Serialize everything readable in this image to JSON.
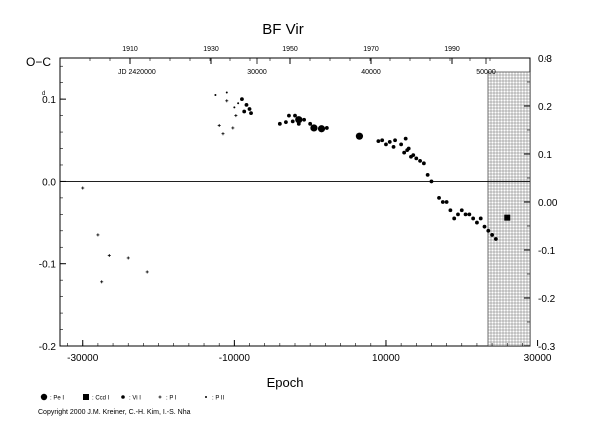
{
  "chart_data": {
    "type": "scatter",
    "title": "BF  Vir",
    "ylabel_left": "O−C",
    "ylabel_right": "d",
    "ylabel_left_unit": "d",
    "xlabel": "Epoch",
    "jd_label": "JD 2420000",
    "copyright": "Copyright 2000 J.M. Kreiner, C.-H. Kim, I.-S. Nha",
    "xlim": [
      -33000,
      29000
    ],
    "ylim": [
      -0.2,
      0.15
    ],
    "ylim_right": [
      -0.3,
      0.3
    ],
    "x_ticks": [
      "-30000",
      "-10000",
      "10000",
      "30000"
    ],
    "y_ticks_left": [
      "0.1",
      "0.0",
      "-0.1",
      "-0.2"
    ],
    "y_ticks_right": [
      "0.3",
      "0.2",
      "0.1",
      "0.00",
      "-0.1",
      "-0.2",
      "-0.3"
    ],
    "top_year_ticks": [
      "1910",
      "1930",
      "1950",
      "1970",
      "1990"
    ],
    "top_jd_ticks": [
      "30000",
      "40000",
      "50000"
    ],
    "hatched_region_x": [
      16500,
      29000
    ],
    "legend": [
      {
        "symbol": "big-dot",
        "label": ": Pe I"
      },
      {
        "symbol": "square",
        "label": ": Ccd I"
      },
      {
        "symbol": "small-dot",
        "label": ": Vi I"
      },
      {
        "symbol": "plus",
        "label": ": P I"
      },
      {
        "symbol": "tiny-dot",
        "label": ": P II"
      }
    ],
    "series": [
      {
        "symbol": "plus",
        "points": [
          [
            -30000,
            -0.008
          ],
          [
            -28000,
            -0.065
          ],
          [
            -27500,
            -0.122
          ],
          [
            -26500,
            -0.09
          ],
          [
            -24000,
            -0.093
          ],
          [
            -21500,
            -0.11
          ],
          [
            -12000,
            0.068
          ],
          [
            -11500,
            0.058
          ],
          [
            -11000,
            0.098
          ],
          [
            -10200,
            0.065
          ],
          [
            -9800,
            0.08
          ]
        ]
      },
      {
        "symbol": "tiny-dot",
        "points": [
          [
            -12500,
            0.105
          ],
          [
            -11000,
            0.108
          ],
          [
            -10000,
            0.09
          ],
          [
            -9500,
            0.095
          ]
        ]
      },
      {
        "symbol": "small-dot",
        "points": [
          [
            -9000,
            0.1
          ],
          [
            -8700,
            0.085
          ],
          [
            -8400,
            0.093
          ],
          [
            -8000,
            0.088
          ],
          [
            -7800,
            0.083
          ],
          [
            -4000,
            0.07
          ],
          [
            -3200,
            0.072
          ],
          [
            -2800,
            0.08
          ],
          [
            -2300,
            0.073
          ],
          [
            -2000,
            0.08
          ],
          [
            -1500,
            0.07
          ],
          [
            -800,
            0.075
          ],
          [
            0,
            0.07
          ],
          [
            500,
            0.065
          ],
          [
            1500,
            0.063
          ],
          [
            2200,
            0.065
          ],
          [
            9000,
            0.049
          ],
          [
            9500,
            0.05
          ],
          [
            10000,
            0.045
          ],
          [
            10500,
            0.048
          ],
          [
            11000,
            0.042
          ],
          [
            11200,
            0.05
          ],
          [
            12000,
            0.045
          ],
          [
            12400,
            0.035
          ],
          [
            12600,
            0.052
          ],
          [
            12800,
            0.038
          ],
          [
            13000,
            0.04
          ],
          [
            13300,
            0.03
          ],
          [
            13600,
            0.032
          ],
          [
            14000,
            0.028
          ],
          [
            14500,
            0.025
          ],
          [
            15000,
            0.022
          ],
          [
            15500,
            0.008
          ],
          [
            16000,
            0.0
          ],
          [
            17000,
            -0.02
          ],
          [
            17500,
            -0.025
          ],
          [
            18000,
            -0.025
          ],
          [
            18500,
            -0.035
          ],
          [
            19000,
            -0.045
          ],
          [
            19500,
            -0.04
          ],
          [
            20000,
            -0.035
          ],
          [
            20500,
            -0.04
          ],
          [
            21000,
            -0.04
          ],
          [
            21500,
            -0.045
          ],
          [
            22000,
            -0.05
          ],
          [
            22500,
            -0.045
          ],
          [
            23000,
            -0.055
          ],
          [
            23500,
            -0.06
          ],
          [
            24000,
            -0.065
          ],
          [
            24500,
            -0.07
          ]
        ]
      },
      {
        "symbol": "big-dot",
        "points": [
          [
            -1500,
            0.075
          ],
          [
            500,
            0.065
          ],
          [
            1500,
            0.064
          ],
          [
            6500,
            0.055
          ]
        ]
      },
      {
        "symbol": "square",
        "points": [
          [
            26000,
            -0.044
          ]
        ]
      }
    ]
  }
}
